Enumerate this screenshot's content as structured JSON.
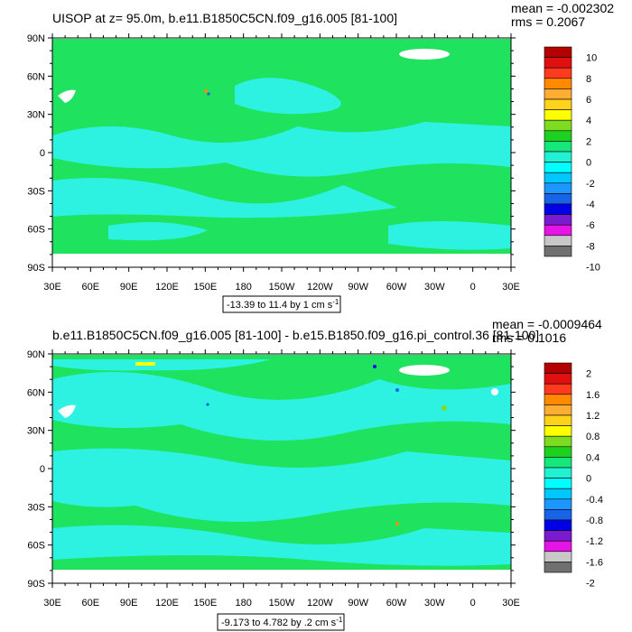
{
  "chart_data": [
    {
      "type": "heatmap",
      "title": "UISOP at z=  95.0m, b.e11.B1850C5CN.f09_g16.005 [81-100]",
      "stats": {
        "mean": "mean = -0.002302",
        "rms": "rms = 0.2067"
      },
      "xlabel": "",
      "ylabel": "",
      "x_ticks": [
        "30E",
        "60E",
        "90E",
        "120E",
        "150E",
        "180",
        "150W",
        "120W",
        "90W",
        "60W",
        "30W",
        "0",
        "30E"
      ],
      "y_ticks": [
        "90N",
        "60N",
        "30N",
        "0",
        "30S",
        "60S",
        "90S"
      ],
      "range_note": "-13.39 to 11.4 by 1 cm s",
      "range_unit_exp": "-1",
      "colorbar": {
        "labels": [
          "10",
          "8",
          "6",
          "4",
          "2",
          "0",
          "-2",
          "-4",
          "-6",
          "-8",
          "-10"
        ],
        "colors": [
          "#b40000",
          "#e01010",
          "#ff3a1e",
          "#ff8a00",
          "#ffad33",
          "#ffd21c",
          "#ffff00",
          "#7ddc1f",
          "#1fd11f",
          "#14e87a",
          "#22f0d2",
          "#00ffff",
          "#00c8ff",
          "#1e96ff",
          "#1864e6",
          "#0000e6",
          "#7a1bd0",
          "#e614e6",
          "#c8c8c8",
          "#707070"
        ]
      },
      "field": {
        "background_value": 0,
        "dominant_color": "#1fe25f",
        "secondary_color": "#2df2e2"
      }
    },
    {
      "type": "heatmap",
      "title": "b.e11.B1850C5CN.f09_g16.005 [81-100] - b.e15.B1850.f09_g16.pi_control.36 [81-100]",
      "stats": {
        "mean": "mean = -0.0009464",
        "rms": "rms = 0.1016"
      },
      "xlabel": "",
      "ylabel": "",
      "x_ticks": [
        "30E",
        "60E",
        "90E",
        "120E",
        "150E",
        "180",
        "150W",
        "120W",
        "90W",
        "60W",
        "30W",
        "0",
        "30E"
      ],
      "y_ticks": [
        "90N",
        "60N",
        "30N",
        "0",
        "30S",
        "60S",
        "90S"
      ],
      "range_note": "-9.173 to 4.782 by .2 cm s",
      "range_unit_exp": "-1",
      "colorbar": {
        "labels": [
          "2",
          "1.6",
          "1.2",
          "0.8",
          "0.4",
          "0",
          "-0.4",
          "-0.8",
          "-1.2",
          "-1.6",
          "-2"
        ],
        "colors": [
          "#b40000",
          "#e01010",
          "#ff3a1e",
          "#ff8a00",
          "#ffad33",
          "#ffd21c",
          "#ffff00",
          "#7ddc1f",
          "#1fd11f",
          "#14e87a",
          "#22f0d2",
          "#00ffff",
          "#00c8ff",
          "#1e96ff",
          "#1864e6",
          "#0000e6",
          "#7a1bd0",
          "#e614e6",
          "#c8c8c8",
          "#707070"
        ]
      },
      "field": {
        "background_value": 0,
        "dominant_color": "#1fe25f",
        "secondary_color": "#2df2e2"
      }
    }
  ]
}
